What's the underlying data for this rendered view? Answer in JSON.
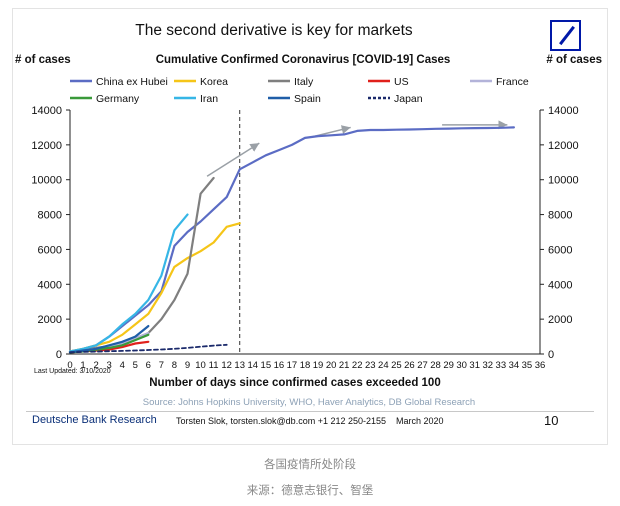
{
  "page": {
    "headline": "The second derivative is key for markets",
    "logo": {
      "name": "deutsche-bank-logo",
      "color": "#0018a8"
    },
    "y_label_left": "# of cases",
    "y_label_right": "# of cases",
    "last_updated": "Last Updated: 3/10/2020",
    "source": "Source: Johns Hopkins University, WHO, Haver Analytics, DB Global Research",
    "footer": {
      "bank": "Deutsche Bank Research",
      "author": "Torsten Slok, torsten.slok@db.com  +1 212 250-2155",
      "date": "March 2020",
      "page_number": "10"
    },
    "caption_1": "各国疫情所处阶段",
    "caption_2": "来源：德意志银行、智堡"
  },
  "chart_data": {
    "type": "line",
    "title": "Cumulative Confirmed Coronavirus [COVID-19] Cases",
    "xlabel": "Number of days since confirmed cases exceeded 100",
    "ylabel": "# of cases",
    "ylabel_right": "# of cases",
    "xlim": [
      0,
      36
    ],
    "ylim": [
      0,
      14000
    ],
    "x_ticks": [
      0,
      1,
      2,
      3,
      4,
      5,
      6,
      7,
      8,
      9,
      10,
      11,
      12,
      13,
      14,
      15,
      16,
      17,
      18,
      19,
      20,
      21,
      22,
      23,
      24,
      25,
      26,
      27,
      28,
      29,
      30,
      31,
      32,
      33,
      34,
      35,
      36
    ],
    "y_ticks": [
      0,
      2000,
      4000,
      6000,
      8000,
      10000,
      12000,
      14000
    ],
    "grid": false,
    "legend_position": "top",
    "vertical_marker": {
      "x": 13,
      "style": "dashed"
    },
    "series": [
      {
        "name": "China ex Hubei",
        "color": "#5b6cc4",
        "dash": "solid",
        "x": [
          0,
          1,
          2,
          3,
          4,
          5,
          6,
          7,
          8,
          9,
          10,
          11,
          12,
          13,
          14,
          15,
          16,
          17,
          18,
          19,
          20,
          21,
          22,
          23,
          24,
          25,
          26,
          27,
          28,
          29,
          30,
          31,
          32,
          33,
          34
        ],
        "y": [
          150,
          300,
          500,
          1000,
          1600,
          2200,
          2800,
          3600,
          6200,
          7000,
          7600,
          8300,
          9000,
          10600,
          11000,
          11400,
          11700,
          12000,
          12400,
          12500,
          12550,
          12600,
          12800,
          12850,
          12850,
          12870,
          12880,
          12900,
          12920,
          12930,
          12950,
          12960,
          12970,
          12980,
          13000
        ]
      },
      {
        "name": "Korea",
        "color": "#f5c518",
        "dash": "solid",
        "x": [
          0,
          1,
          2,
          3,
          4,
          5,
          6,
          7,
          8,
          9,
          10,
          11,
          12,
          13
        ],
        "y": [
          150,
          300,
          500,
          700,
          1100,
          1700,
          2300,
          3500,
          5000,
          5500,
          5900,
          6400,
          7300,
          7500
        ]
      },
      {
        "name": "Italy",
        "color": "#7f7f7f",
        "dash": "solid",
        "x": [
          0,
          1,
          2,
          3,
          4,
          5,
          6,
          7,
          8,
          9,
          10,
          11
        ],
        "y": [
          150,
          250,
          350,
          450,
          650,
          900,
          1200,
          2000,
          3100,
          4600,
          9200,
          10100
        ]
      },
      {
        "name": "US",
        "color": "#e0201b",
        "dash": "solid",
        "x": [
          0,
          1,
          2,
          3,
          4,
          5,
          6
        ],
        "y": [
          100,
          150,
          200,
          250,
          400,
          600,
          700
        ]
      },
      {
        "name": "France",
        "color": "#b3b3d9",
        "dash": "solid",
        "x": [
          0,
          1,
          2,
          3,
          4,
          5,
          6
        ],
        "y": [
          100,
          200,
          300,
          400,
          600,
          900,
          1200
        ]
      },
      {
        "name": "Germany",
        "color": "#3a9a3a",
        "dash": "solid",
        "x": [
          0,
          1,
          2,
          3,
          4,
          5,
          6
        ],
        "y": [
          100,
          150,
          250,
          350,
          500,
          800,
          1100
        ]
      },
      {
        "name": "Iran",
        "color": "#36b6e6",
        "dash": "solid",
        "x": [
          0,
          1,
          2,
          3,
          4,
          5,
          6,
          7,
          8,
          9
        ],
        "y": [
          150,
          300,
          500,
          1000,
          1700,
          2300,
          3100,
          4500,
          7100,
          8000
        ]
      },
      {
        "name": "Spain",
        "color": "#1f5ea8",
        "dash": "solid",
        "x": [
          0,
          1,
          2,
          3,
          4,
          5,
          6
        ],
        "y": [
          100,
          200,
          300,
          500,
          700,
          1000,
          1600
        ]
      },
      {
        "name": "Japan",
        "color": "#1b2a6b",
        "dash": "dashed",
        "x": [
          0,
          1,
          2,
          3,
          4,
          5,
          6,
          7,
          8,
          9,
          10,
          11,
          12
        ],
        "y": [
          100,
          120,
          140,
          160,
          180,
          200,
          230,
          260,
          300,
          350,
          420,
          480,
          530
        ]
      }
    ],
    "arrows": [
      {
        "from": [
          10.5,
          10200
        ],
        "to": [
          14.5,
          12100
        ]
      },
      {
        "from": [
          18.5,
          12450
        ],
        "to": [
          21.5,
          13000
        ]
      },
      {
        "from": [
          28.5,
          13150
        ],
        "to": [
          33.5,
          13150
        ]
      }
    ]
  }
}
